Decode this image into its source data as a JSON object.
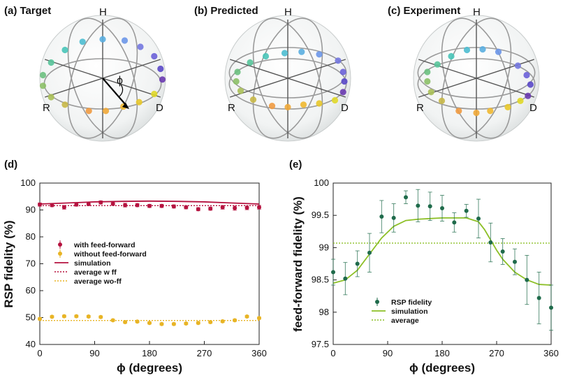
{
  "bloch_panels": [
    {
      "label": "(a) Target",
      "state_labels": {
        "top": "H",
        "left": "R",
        "right": "D",
        "angle": "ϕ"
      }
    },
    {
      "label": "(b) Predicted",
      "state_labels": {
        "top": "H",
        "left": "R",
        "right": "D"
      }
    },
    {
      "label": "(c) Experiment",
      "state_labels": {
        "top": "H",
        "left": "R",
        "right": "D"
      }
    }
  ],
  "colors": {
    "ff": "#b5123f",
    "noff": "#e8b425",
    "rsp": "#1f6b4b",
    "sim2": "#8cbf26",
    "sphere_line": "#9a9a9a"
  },
  "chart_data": [
    {
      "type": "scatter",
      "panel": "(d)",
      "xlabel": "ϕ (degrees)",
      "ylabel": "RSP fidelity (%)",
      "xlim": [
        0,
        360
      ],
      "ylim": [
        40,
        100
      ],
      "xticks": [
        0,
        90,
        180,
        270,
        360
      ],
      "yticks": [
        40,
        50,
        60,
        70,
        80,
        90,
        100
      ],
      "legend_position": "center-left",
      "series": [
        {
          "name": "with feed-forward",
          "kind": "points",
          "x": [
            0,
            20,
            40,
            60,
            80,
            100,
            120,
            140,
            160,
            180,
            200,
            220,
            240,
            260,
            280,
            300,
            320,
            340,
            360
          ],
          "y": [
            92.0,
            91.8,
            91.0,
            92.0,
            92.2,
            92.8,
            92.3,
            91.8,
            91.8,
            91.5,
            91.5,
            91.3,
            91.0,
            90.3,
            90.5,
            91.0,
            90.7,
            90.8,
            91.0
          ],
          "err": [
            0.6,
            0.6,
            0.7,
            0.6,
            0.6,
            0.6,
            0.6,
            0.7,
            0.6,
            0.6,
            0.6,
            0.6,
            0.6,
            0.6,
            0.6,
            0.7,
            0.8,
            0.7,
            0.7
          ]
        },
        {
          "name": "without feed-forward",
          "kind": "points",
          "x": [
            0,
            20,
            40,
            60,
            80,
            100,
            120,
            140,
            160,
            180,
            200,
            220,
            240,
            260,
            280,
            300,
            320,
            340,
            360
          ],
          "y": [
            49.5,
            50.3,
            50.5,
            50.5,
            50.4,
            50.2,
            49.0,
            48.3,
            48.5,
            48.0,
            47.6,
            47.6,
            47.8,
            48.0,
            48.3,
            48.6,
            49.0,
            50.4,
            49.8
          ],
          "err": [
            0.4,
            0.4,
            0.4,
            0.4,
            0.4,
            0.4,
            0.4,
            0.4,
            0.4,
            0.4,
            0.4,
            0.4,
            0.4,
            0.4,
            0.4,
            0.4,
            0.4,
            0.4,
            0.4
          ]
        },
        {
          "name": "simulation",
          "kind": "line",
          "style": "solid",
          "x": [
            0,
            45,
            90,
            135,
            180,
            225,
            270,
            315,
            360
          ],
          "y": [
            92.2,
            92.6,
            93.0,
            93.2,
            93.3,
            93.2,
            93.0,
            92.6,
            92.2
          ]
        },
        {
          "name": "average w ff",
          "kind": "line",
          "style": "dotted",
          "x": [
            0,
            360
          ],
          "y": [
            91.6,
            91.6
          ]
        },
        {
          "name": "average wo-ff",
          "kind": "line",
          "style": "dotted",
          "x": [
            0,
            360
          ],
          "y": [
            48.9,
            48.9
          ]
        }
      ]
    },
    {
      "type": "scatter",
      "panel": "(e)",
      "xlabel": "ϕ (degrees)",
      "ylabel": "feed-forward fidelity (%)",
      "xlim": [
        0,
        360
      ],
      "ylim": [
        97.5,
        100
      ],
      "xticks": [
        0,
        90,
        180,
        270,
        360
      ],
      "yticks": [
        97.5,
        98,
        98.5,
        99,
        99.5,
        100
      ],
      "legend_position": "bottom-center",
      "series": [
        {
          "name": "RSP fidelity",
          "kind": "points",
          "x": [
            0,
            20,
            40,
            60,
            80,
            100,
            120,
            140,
            160,
            180,
            200,
            220,
            240,
            260,
            280,
            300,
            320,
            340,
            360
          ],
          "y": [
            98.62,
            98.52,
            98.75,
            98.92,
            99.48,
            99.46,
            99.78,
            99.65,
            99.64,
            99.61,
            99.39,
            99.57,
            99.45,
            99.08,
            98.94,
            98.78,
            98.5,
            98.22,
            98.07
          ],
          "err": [
            0.2,
            0.25,
            0.2,
            0.3,
            0.25,
            0.22,
            0.1,
            0.25,
            0.22,
            0.2,
            0.15,
            0.1,
            0.3,
            0.3,
            0.2,
            0.2,
            0.38,
            0.4,
            0.35
          ]
        },
        {
          "name": "simulation",
          "kind": "line",
          "style": "solid",
          "x": [
            0,
            20,
            40,
            60,
            80,
            100,
            120,
            140,
            160,
            180,
            200,
            220,
            240,
            250,
            260,
            270,
            280,
            300,
            320,
            340,
            360
          ],
          "y": [
            98.45,
            98.5,
            98.65,
            98.9,
            99.15,
            99.33,
            99.42,
            99.44,
            99.45,
            99.46,
            99.46,
            99.46,
            99.4,
            99.28,
            99.12,
            98.96,
            98.82,
            98.62,
            98.5,
            98.43,
            98.42
          ]
        },
        {
          "name": "average",
          "kind": "line",
          "style": "dotted",
          "x": [
            0,
            360
          ],
          "y": [
            99.07,
            99.07
          ]
        }
      ]
    }
  ]
}
